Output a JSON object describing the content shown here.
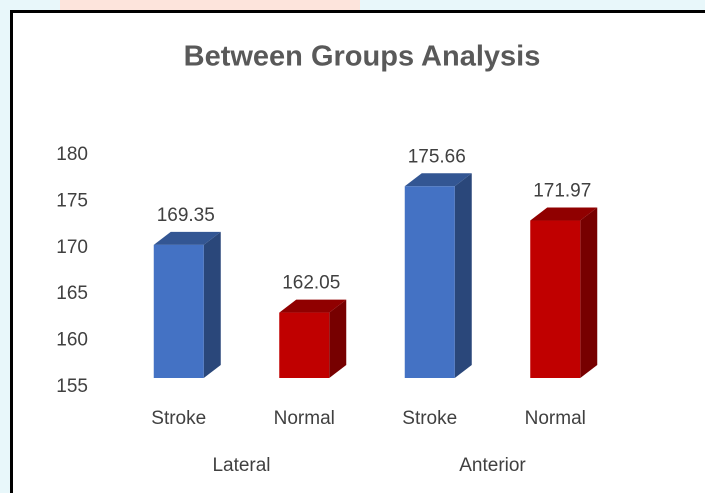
{
  "chart_data": {
    "type": "bar",
    "title": "Between Groups Analysis",
    "categories": [
      "Stroke",
      "Normal",
      "Stroke",
      "Normal"
    ],
    "groups": [
      "Lateral",
      "Anterior"
    ],
    "values": [
      169.35,
      162.05,
      175.66,
      171.97
    ],
    "colors": [
      "#4472c4",
      "#c00000",
      "#4472c4",
      "#c00000"
    ],
    "ylim": [
      155,
      180
    ],
    "yticks": [
      155,
      160,
      165,
      170,
      175,
      180
    ],
    "grid": false
  }
}
